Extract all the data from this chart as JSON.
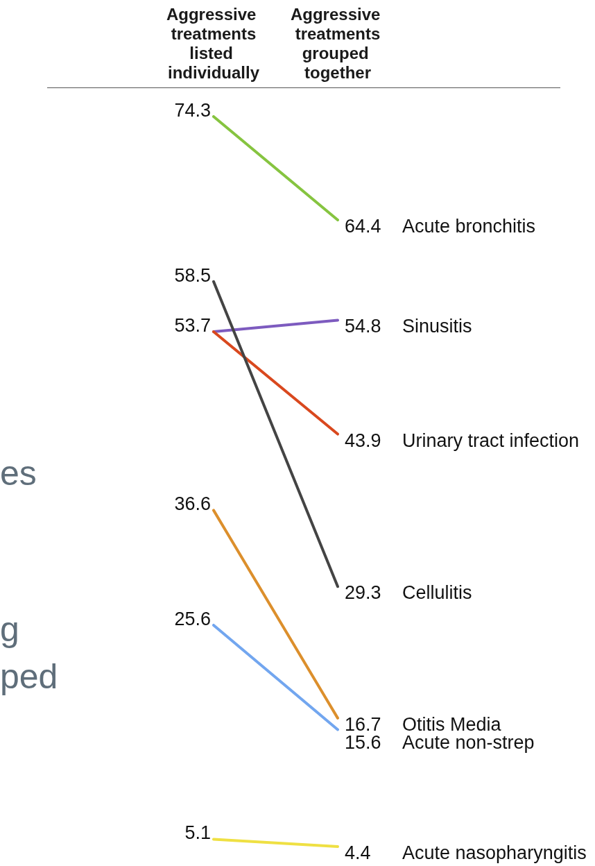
{
  "chart_data": {
    "type": "line",
    "categories": [
      "Aggressive treatments\nlisted individually",
      "Aggressive treatments\ngrouped together"
    ],
    "series": [
      {
        "name": "Acute bronchitis",
        "color": "#86c440",
        "values": [
          74.3,
          64.4
        ],
        "value_labels": [
          "74.3",
          "64.4"
        ]
      },
      {
        "name": "Sinusitis",
        "color": "#7d5bbf",
        "values": [
          53.7,
          54.8
        ],
        "value_labels": [
          "53.7",
          "54.8"
        ]
      },
      {
        "name": "Urinary tract infection",
        "color": "#d9481e",
        "values": [
          53.7,
          43.9
        ],
        "value_labels": [
          null,
          "43.9"
        ]
      },
      {
        "name": "Cellulitis",
        "color": "#444444",
        "values": [
          58.5,
          29.3
        ],
        "value_labels": [
          "58.5",
          "29.3"
        ]
      },
      {
        "name": "Otitis Media",
        "color": "#dc8f2c",
        "values": [
          36.6,
          16.7
        ],
        "value_labels": [
          "36.6",
          "16.7"
        ]
      },
      {
        "name": "Acute non-strep",
        "color": "#72a6ef",
        "values": [
          25.6,
          15.6
        ],
        "value_labels": [
          "25.6",
          "15.6"
        ]
      },
      {
        "name": "Acute nasopharyngitis",
        "color": "#efe043",
        "values": [
          5.1,
          4.4
        ],
        "value_labels": [
          "5.1",
          "4.4"
        ]
      }
    ],
    "marker": "none",
    "line_style": "solid",
    "legend": false,
    "grid": false,
    "annotations": [
      "es",
      "g",
      "ped"
    ]
  }
}
